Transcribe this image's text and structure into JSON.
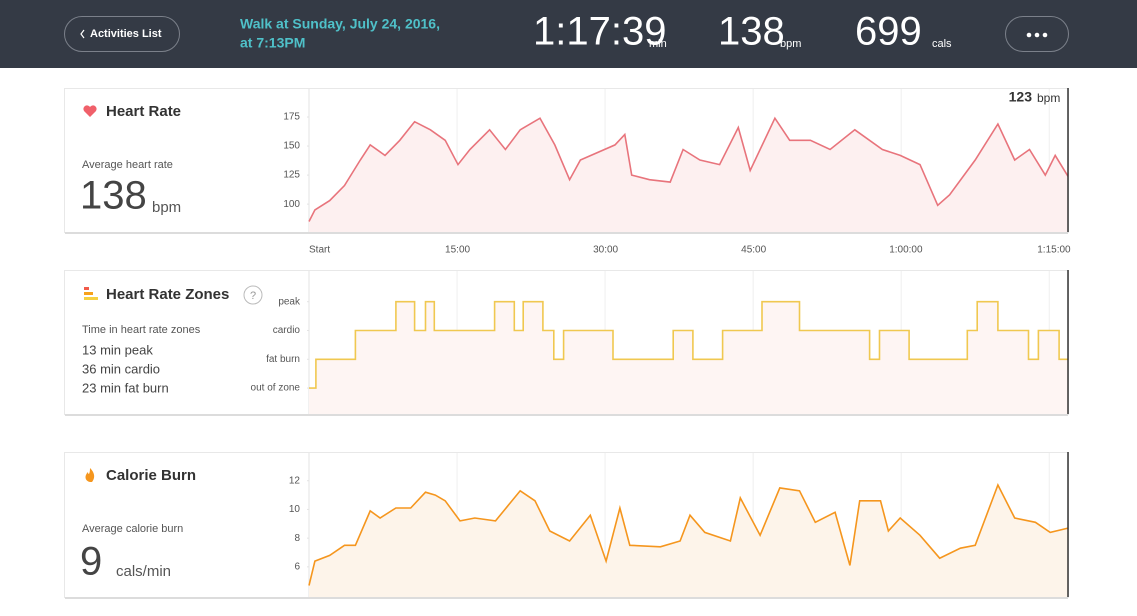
{
  "header": {
    "back_button": "Activities List",
    "title_lines": [
      "Walk at Sunday, July 24, 2016,",
      "at 7:13PM"
    ],
    "stats": [
      {
        "value": "1:17:39",
        "unit": "min"
      },
      {
        "value": 138,
        "unit": "bpm"
      },
      {
        "value": 699,
        "unit": "cals"
      }
    ]
  },
  "time_axis": {
    "xlim": [
      0,
      76.9
    ],
    "xticks": [
      {
        "value": 0,
        "label": "Start"
      },
      {
        "value": 15,
        "label": "15:00"
      },
      {
        "value": 30,
        "label": "30:00"
      },
      {
        "value": 45,
        "label": "45:00"
      },
      {
        "value": 60,
        "label": "1:00:00"
      },
      {
        "value": 75,
        "label": "1:15:00"
      }
    ]
  },
  "panels": [
    {
      "title": "Heart Rate",
      "subtitle": "Average heart rate",
      "value": 138,
      "unit": "bpm",
      "current": {
        "value": 123,
        "unit": "bpm"
      },
      "chart": {
        "type": "line",
        "color": "#e8747c",
        "fill": "#fdf0f0",
        "ylim": [
          76,
          200
        ],
        "yticks": [
          100,
          125,
          150,
          175
        ],
        "x": [
          0,
          0.6,
          2.1,
          3.6,
          5.2,
          6.2,
          7.7,
          9.2,
          10.7,
          12.3,
          13.8,
          15.1,
          16.3,
          18.3,
          19.9,
          21.4,
          23.4,
          24.9,
          26.4,
          27.5,
          31,
          32,
          32.7,
          34.5,
          36.6,
          37.9,
          39.6,
          41.6,
          43.5,
          44.7,
          47.2,
          48.7,
          50.8,
          52.8,
          55.3,
          58.1,
          59.9,
          61.9,
          63.7,
          64.9,
          67.5,
          69.8,
          71.5,
          73,
          74.6,
          75.6,
          76.9
        ],
        "values": [
          85,
          95,
          103,
          116,
          138,
          151,
          142,
          155,
          171,
          164,
          155,
          134,
          147,
          164,
          147,
          164,
          174,
          151,
          121,
          138,
          151,
          160,
          125,
          121,
          119,
          147,
          138,
          134,
          166,
          129,
          174,
          155,
          155,
          147,
          164,
          147,
          142,
          134,
          99,
          108,
          138,
          169,
          138,
          147,
          125,
          142,
          124
        ]
      }
    },
    {
      "title": "Heart Rate Zones",
      "help": "?",
      "subtitle": "Time in heart rate zones",
      "lines": [
        "13 min peak",
        "36 min cardio",
        "23 min fat burn"
      ],
      "chart": {
        "type": "step",
        "color": "#f0c850",
        "fill": "#fef5f3",
        "ylim": [
          -0.9,
          4.1
        ],
        "yticks": [
          {
            "value": 0,
            "label": "out of zone"
          },
          {
            "value": 1,
            "label": "fat burn"
          },
          {
            "value": 2,
            "label": "cardio"
          },
          {
            "value": 3,
            "label": "peak"
          }
        ],
        "x": [
          0,
          0.7,
          4.7,
          8.8,
          10.7,
          11.8,
          12.7,
          18.8,
          20.8,
          21.7,
          23.7,
          24.8,
          25.8,
          30.8,
          36.9,
          38.9,
          41.9,
          45.9,
          49.7,
          56.8,
          57.8,
          60.8,
          66.7,
          67.7,
          69.8,
          72.9,
          73.9,
          76.0,
          76.9
        ],
        "values": [
          0,
          1,
          2,
          3,
          2,
          3,
          2,
          3,
          2,
          3,
          2,
          1,
          2,
          1,
          2,
          1,
          2,
          3,
          2,
          1,
          2,
          1,
          2,
          3,
          2,
          1,
          2,
          1,
          1
        ]
      }
    },
    {
      "title": "Calorie Burn",
      "subtitle": "Average calorie burn",
      "value": 9,
      "unit": "cals/min",
      "chart": {
        "type": "line",
        "color": "#f5961e",
        "fill": "#fdf4ea",
        "ylim": [
          3.9,
          14
        ],
        "yticks": [
          6,
          8,
          10,
          12
        ],
        "x": [
          0,
          0.6,
          2.1,
          3.6,
          4.7,
          6.2,
          7.2,
          8.8,
          10.3,
          11.8,
          12.8,
          13.8,
          15.3,
          16.8,
          18.9,
          21.4,
          22.9,
          24.4,
          26.4,
          28.5,
          30.1,
          31.5,
          32.5,
          35.6,
          37.6,
          38.6,
          40.1,
          42.7,
          43.7,
          45.7,
          47.7,
          49.7,
          51.3,
          53.3,
          54.8,
          55.8,
          57.9,
          58.7,
          59.9,
          61.9,
          63.9,
          66,
          67.5,
          69.8,
          71.5,
          73.6,
          75.1,
          76.9
        ],
        "values": [
          4.7,
          6.4,
          6.8,
          7.5,
          7.5,
          9.9,
          9.4,
          10.1,
          10.1,
          11.2,
          11.0,
          10.6,
          9.2,
          9.4,
          9.2,
          11.3,
          10.6,
          8.5,
          7.8,
          9.6,
          6.4,
          10.1,
          7.5,
          7.4,
          7.8,
          9.6,
          8.4,
          7.8,
          10.8,
          8.2,
          11.5,
          11.3,
          9.1,
          9.8,
          6.1,
          10.6,
          10.6,
          8.5,
          9.4,
          8.2,
          6.6,
          7.3,
          7.5,
          11.7,
          9.4,
          9.1,
          8.4,
          8.7
        ]
      }
    }
  ]
}
